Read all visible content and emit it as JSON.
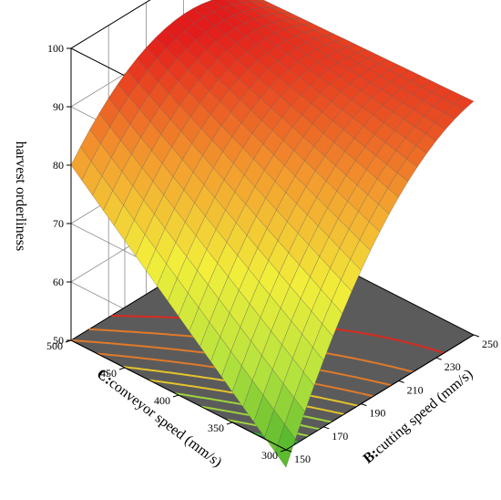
{
  "chart_data": {
    "type": "surface3d",
    "title": "",
    "zlabel": "harvest orderliness",
    "xlabel_prefix": "B:",
    "xlabel_text": "cutting speed  (mm/s)",
    "ylabel_prefix": "C:",
    "ylabel_text": "conveyor  speed  (mm/s)",
    "x": {
      "name": "cutting speed",
      "unit": "mm/s",
      "range": [
        150,
        250
      ],
      "ticks": [
        150,
        170,
        190,
        210,
        230,
        250
      ]
    },
    "y": {
      "name": "conveyor speed",
      "unit": "mm/s",
      "range": [
        300,
        500
      ],
      "ticks": [
        300,
        350,
        400,
        450,
        500
      ]
    },
    "z": {
      "name": "harvest orderliness",
      "range": [
        50,
        100
      ],
      "ticks": [
        50,
        60,
        70,
        80,
        90,
        100
      ]
    },
    "surface": {
      "x_values": [
        150,
        250
      ],
      "y_values": [
        300,
        500
      ],
      "z_corners": {
        "x150_y300": 47,
        "x250_y300": 90,
        "x150_y500": 80,
        "x250_y500": 89
      },
      "curvature": 9
    },
    "colormap": [
      "#3fae2a",
      "#b5e33e",
      "#f2ee3a",
      "#f39a2e",
      "#e21b1b"
    ],
    "contour_colors": [
      "#2db32d",
      "#9fd43c",
      "#e3c42c",
      "#e07a2a",
      "#d92b1e"
    ],
    "floor_color": "#5b5b5b",
    "grid": true
  }
}
